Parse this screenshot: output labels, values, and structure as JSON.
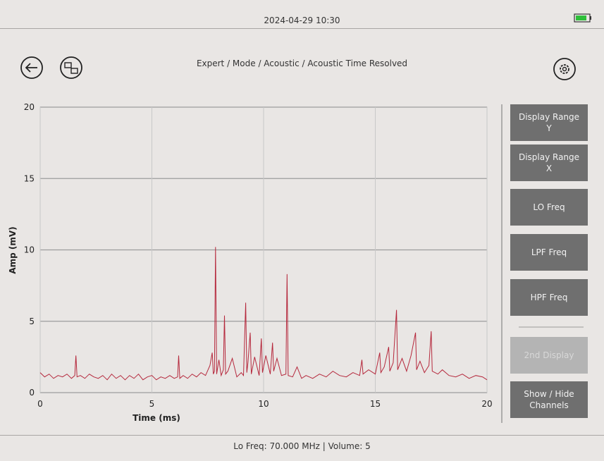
{
  "header": {
    "datetime": "2024-04-29 10:30",
    "breadcrumb": "Expert / Mode / Acoustic / Acoustic Time Resolved"
  },
  "chart_data": {
    "type": "line",
    "xlabel": "Time (ms)",
    "ylabel": "Amp (mV)",
    "color": "#b5283c",
    "grid": true,
    "xlim": [
      0,
      20
    ],
    "ylim": [
      0,
      20
    ],
    "xticks": [
      0,
      5,
      10,
      15,
      20
    ],
    "yticks": [
      0,
      5,
      10,
      15,
      20
    ],
    "x": [
      0,
      0.2,
      0.4,
      0.6,
      0.8,
      1.0,
      1.2,
      1.4,
      1.55,
      1.6,
      1.65,
      1.8,
      2.0,
      2.2,
      2.4,
      2.6,
      2.8,
      3.0,
      3.2,
      3.4,
      3.6,
      3.8,
      4.0,
      4.2,
      4.4,
      4.6,
      4.8,
      5.0,
      5.2,
      5.4,
      5.6,
      5.8,
      6.0,
      6.15,
      6.2,
      6.25,
      6.4,
      6.6,
      6.8,
      7.0,
      7.2,
      7.4,
      7.6,
      7.7,
      7.75,
      7.8,
      7.85,
      7.9,
      8.0,
      8.1,
      8.2,
      8.25,
      8.3,
      8.4,
      8.6,
      8.8,
      9.0,
      9.1,
      9.2,
      9.25,
      9.3,
      9.4,
      9.45,
      9.6,
      9.8,
      9.9,
      9.95,
      10.1,
      10.3,
      10.4,
      10.45,
      10.6,
      10.8,
      11.0,
      11.05,
      11.1,
      11.3,
      11.5,
      11.7,
      11.9,
      12.2,
      12.5,
      12.8,
      13.1,
      13.4,
      13.7,
      14.0,
      14.3,
      14.4,
      14.45,
      14.7,
      15.0,
      15.2,
      15.25,
      15.4,
      15.6,
      15.65,
      15.8,
      15.95,
      16.0,
      16.2,
      16.4,
      16.6,
      16.8,
      16.85,
      17.0,
      17.2,
      17.4,
      17.5,
      17.55,
      17.8,
      18.0,
      18.3,
      18.6,
      18.9,
      19.2,
      19.5,
      19.8,
      20.0
    ],
    "values": [
      1.4,
      1.1,
      1.3,
      1.0,
      1.2,
      1.1,
      1.3,
      1.0,
      1.2,
      2.6,
      1.1,
      1.2,
      1.0,
      1.3,
      1.1,
      1.0,
      1.2,
      0.9,
      1.3,
      1.0,
      1.2,
      0.9,
      1.2,
      1.0,
      1.3,
      0.9,
      1.1,
      1.2,
      0.9,
      1.1,
      1.0,
      1.2,
      1.0,
      1.1,
      2.6,
      1.0,
      1.2,
      1.0,
      1.3,
      1.1,
      1.4,
      1.2,
      1.9,
      2.8,
      1.3,
      1.5,
      10.2,
      1.3,
      2.3,
      1.2,
      1.6,
      5.4,
      1.3,
      1.5,
      2.4,
      1.1,
      1.4,
      1.2,
      6.3,
      1.4,
      2.1,
      4.2,
      1.3,
      2.5,
      1.2,
      3.8,
      1.4,
      2.6,
      1.3,
      3.5,
      1.5,
      2.4,
      1.2,
      1.3,
      8.3,
      1.2,
      1.1,
      1.8,
      1.0,
      1.2,
      1.0,
      1.3,
      1.1,
      1.5,
      1.2,
      1.1,
      1.4,
      1.2,
      2.3,
      1.3,
      1.6,
      1.3,
      2.8,
      1.4,
      1.8,
      3.2,
      1.5,
      2.1,
      5.8,
      1.6,
      2.4,
      1.5,
      2.6,
      4.2,
      1.6,
      2.2,
      1.4,
      1.9,
      4.3,
      1.5,
      1.3,
      1.6,
      1.2,
      1.1,
      1.3,
      1.0,
      1.2,
      1.1,
      0.9
    ]
  },
  "buttons": [
    "Display Range Y",
    "Display Range X",
    "LO Freq",
    "LPF Freq",
    "HPF Freq",
    "2nd Display",
    "Show / Hide Channels"
  ],
  "footer": "Lo Freq: 70.000 MHz  |  Volume: 5"
}
